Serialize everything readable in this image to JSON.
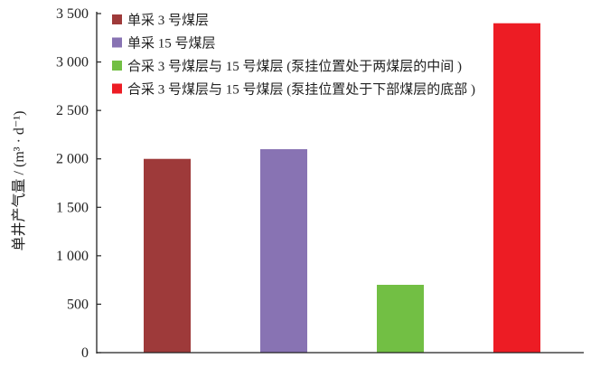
{
  "chart_data": {
    "type": "bar",
    "title": "",
    "xlabel": "",
    "ylabel": "单井产气量 / (m³ · d⁻¹)",
    "ylim": [
      0,
      3500
    ],
    "yticks": [
      0,
      500,
      1000,
      1500,
      2000,
      2500,
      3000,
      3500
    ],
    "ytick_labels": [
      "0",
      "500",
      "1 000",
      "1 500",
      "2 000",
      "2 500",
      "3 000",
      "3 500"
    ],
    "grid": false,
    "legend_position": "top-left",
    "series": [
      {
        "name": "单采 3 号煤层",
        "value": 2000,
        "color": "#9e3a3a"
      },
      {
        "name": "单采 15 号煤层",
        "value": 2100,
        "color": "#8873b3"
      },
      {
        "name": "合采 3 号煤层与 15 号煤层 (泵挂位置处于两煤层的中间 )",
        "value": 700,
        "color": "#72bf44"
      },
      {
        "name": "合采 3 号煤层与 15 号煤层 (泵挂位置处于下部煤层的底部 )",
        "value": 3400,
        "color": "#ed1c24"
      }
    ]
  }
}
